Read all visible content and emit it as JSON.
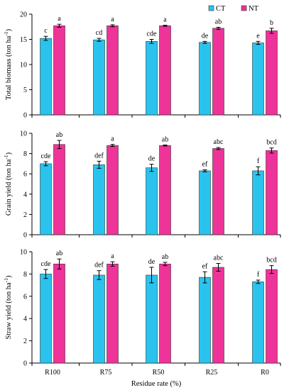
{
  "chart_data": [
    {
      "type": "bar",
      "ylabel": "Total biomass (ton ha",
      "ylabel_sup": "-1",
      "ylabel_end": ")",
      "ylim": [
        0,
        20
      ],
      "yticks": [
        0,
        5,
        10,
        15,
        20
      ],
      "xlabel": "",
      "categories": [
        "R100",
        "R75",
        "R50",
        "R25",
        "R0"
      ],
      "series": [
        {
          "name": "CT",
          "color": "#29c3ee",
          "values": [
            15.2,
            14.9,
            14.6,
            14.4,
            14.3
          ],
          "errors": [
            0.4,
            0.3,
            0.4,
            0.2,
            0.3
          ],
          "labels": [
            "c",
            "cd",
            "cde",
            "de",
            "e"
          ]
        },
        {
          "name": "NT",
          "color": "#ee3399",
          "values": [
            17.7,
            17.7,
            17.7,
            17.2,
            16.7
          ],
          "errors": [
            0.3,
            0.2,
            0.1,
            0.2,
            0.5
          ],
          "labels": [
            "a",
            "a",
            "a",
            "ab",
            "b"
          ]
        }
      ],
      "legend": {
        "position": "top-right",
        "items": [
          "CT",
          "NT"
        ]
      }
    },
    {
      "type": "bar",
      "ylabel": "Grain yield (ton ha",
      "ylabel_sup": "-1",
      "ylabel_end": ")",
      "ylim": [
        0,
        10
      ],
      "yticks": [
        0,
        2,
        4,
        6,
        8,
        10
      ],
      "xlabel": "",
      "categories": [
        "R100",
        "R75",
        "R50",
        "R25",
        "R0"
      ],
      "series": [
        {
          "name": "CT",
          "color": "#29c3ee",
          "values": [
            7.0,
            6.9,
            6.6,
            6.3,
            6.3
          ],
          "errors": [
            0.2,
            0.35,
            0.35,
            0.1,
            0.4
          ],
          "labels": [
            "cde",
            "def",
            "de",
            "ef",
            "f"
          ]
        },
        {
          "name": "NT",
          "color": "#ee3399",
          "values": [
            8.9,
            8.8,
            8.8,
            8.5,
            8.3
          ],
          "errors": [
            0.4,
            0.1,
            0.05,
            0.1,
            0.25
          ],
          "labels": [
            "ab",
            "a",
            "ab",
            "abc",
            "bcd"
          ]
        }
      ]
    },
    {
      "type": "bar",
      "ylabel": "Straw yield (ton ha",
      "ylabel_sup": "-1",
      "ylabel_end": ")",
      "ylim": [
        0,
        10
      ],
      "yticks": [
        0,
        2,
        4,
        6,
        8,
        10
      ],
      "xlabel": "Residue rate (%)",
      "categories": [
        "R100",
        "R75",
        "R50",
        "R25",
        "R0"
      ],
      "series": [
        {
          "name": "CT",
          "color": "#29c3ee",
          "values": [
            8.0,
            7.9,
            7.9,
            7.7,
            7.3
          ],
          "errors": [
            0.4,
            0.4,
            0.7,
            0.5,
            0.15
          ],
          "labels": [
            "cde",
            "def",
            "de",
            "ef",
            "f"
          ]
        },
        {
          "name": "NT",
          "color": "#ee3399",
          "values": [
            8.9,
            8.9,
            8.9,
            8.6,
            8.4
          ],
          "errors": [
            0.45,
            0.2,
            0.15,
            0.35,
            0.35
          ],
          "labels": [
            "ab",
            "a",
            "ab",
            "abc",
            "bcd"
          ]
        }
      ]
    }
  ]
}
